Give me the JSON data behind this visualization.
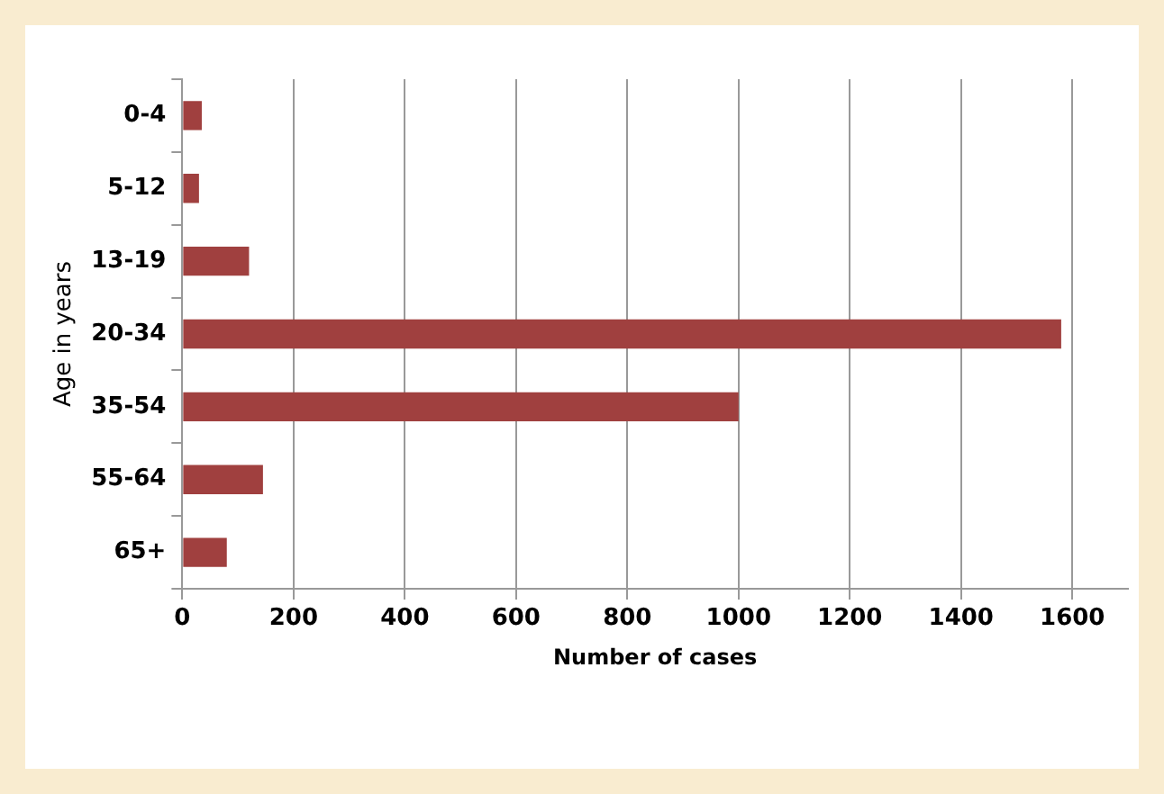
{
  "chart_data": {
    "type": "bar",
    "orientation": "horizontal",
    "xlabel": "Number of cases",
    "ylabel": "Age in years",
    "categories": [
      "0-4",
      "5-12",
      "13-19",
      "20-34",
      "35-54",
      "55-64",
      "65+"
    ],
    "values": [
      35,
      30,
      120,
      1580,
      1000,
      145,
      80
    ],
    "color": "#a0403f",
    "xlim": [
      0,
      1700
    ],
    "xticks": [
      0,
      200,
      400,
      600,
      800,
      1000,
      1200,
      1400,
      1600
    ],
    "grid": "x",
    "legend": false
  }
}
